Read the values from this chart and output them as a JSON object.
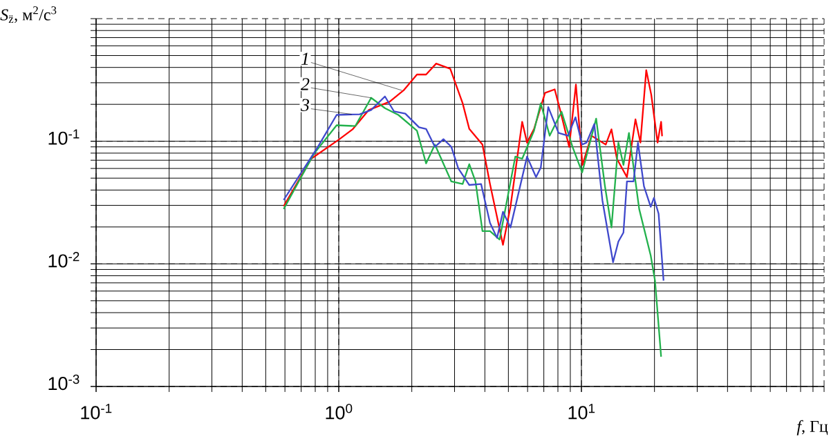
{
  "chart_data": {
    "type": "line",
    "xlabel": "*f*, Гц",
    "ylabel": "*S*$_{z̈}$, м$^{2}$/с$^{3}$",
    "log": "xy",
    "grid": true,
    "marker": "none",
    "line_style": "solid",
    "xlim": [
      0.1,
      100
    ],
    "ylim": [
      0.001,
      1
    ],
    "xticks": [
      {
        "value": 0.1,
        "label": "10$^{-1}$"
      },
      {
        "value": 1,
        "label": "10$^{0}$"
      },
      {
        "value": 10,
        "label": "10$^{1}$"
      },
      {
        "value": 100,
        "label": null
      }
    ],
    "yticks": [
      {
        "value": 0.001,
        "label": "10$^{-3}$"
      },
      {
        "value": 0.01,
        "label": "10$^{-2}$"
      },
      {
        "value": 0.1,
        "label": "10$^{-1}$"
      },
      {
        "value": 1,
        "label": null
      }
    ],
    "annotations": [
      {
        "text": "1",
        "x": 1.82,
        "y": 0.26
      },
      {
        "text": "2",
        "x": 1.36,
        "y": 0.226
      },
      {
        "text": "3",
        "x": 1.13,
        "y": 0.166
      }
    ],
    "series": [
      {
        "color": "#ff0000",
        "x": [
          0.593,
          0.77,
          1.0,
          1.14,
          1.33,
          1.62,
          1.85,
          2.1,
          2.29,
          2.52,
          2.88,
          3.24,
          3.45,
          3.91,
          4.2,
          4.75,
          5.1,
          5.7,
          5.97,
          6.38,
          7.08,
          7.76,
          8.17,
          8.9,
          9.49,
          10.1,
          11.0,
          12.6,
          13.3,
          14.0,
          15.4,
          16.7,
          17.5,
          18.5,
          19.4,
          20.6,
          21.3,
          21.5
        ],
        "values": [
          0.0295,
          0.072,
          0.103,
          0.125,
          0.18,
          0.21,
          0.26,
          0.35,
          0.35,
          0.43,
          0.39,
          0.204,
          0.126,
          0.094,
          0.0448,
          0.0143,
          0.0292,
          0.144,
          0.0975,
          0.126,
          0.248,
          0.265,
          0.18,
          0.09,
          0.29,
          0.064,
          0.111,
          0.094,
          0.125,
          0.072,
          0.051,
          0.151,
          0.0975,
          0.38,
          0.24,
          0.0975,
          0.144,
          0.11
        ]
      },
      {
        "color": "#22b14c",
        "x": [
          0.593,
          0.79,
          0.98,
          1.17,
          1.36,
          1.55,
          1.76,
          2.1,
          2.29,
          2.49,
          2.91,
          3.24,
          3.45,
          3.66,
          3.91,
          4.2,
          4.6,
          5.34,
          5.7,
          6.38,
          6.8,
          7.4,
          8.28,
          9.19,
          10.07,
          11.5,
          12.5,
          13.3,
          14.2,
          14.9,
          15.7,
          17.3,
          19.3,
          20.1,
          21.3
        ],
        "values": [
          0.028,
          0.079,
          0.135,
          0.133,
          0.226,
          0.186,
          0.164,
          0.122,
          0.066,
          0.094,
          0.047,
          0.0448,
          0.065,
          0.047,
          0.0185,
          0.0185,
          0.0158,
          0.075,
          0.072,
          0.122,
          0.204,
          0.111,
          0.174,
          0.09,
          0.0557,
          0.153,
          0.043,
          0.0198,
          0.0975,
          0.064,
          0.117,
          0.028,
          0.0117,
          0.0073,
          0.00175
        ]
      },
      {
        "color": "#3f48cc",
        "x": [
          0.593,
          0.82,
          0.98,
          1.22,
          1.36,
          1.55,
          1.69,
          1.88,
          2.14,
          2.29,
          2.49,
          2.7,
          2.91,
          3.11,
          3.45,
          3.86,
          4.2,
          4.49,
          4.75,
          5.1,
          5.97,
          6.5,
          6.8,
          7.3,
          8.05,
          8.8,
          9.45,
          10.07,
          10.5,
          11.3,
          12.2,
          13.5,
          14.2,
          14.9,
          15.4,
          16.4,
          17.1,
          18.1,
          19.3,
          19.9,
          20.8,
          21.8
        ],
        "values": [
          0.0332,
          0.09,
          0.164,
          0.166,
          0.18,
          0.232,
          0.175,
          0.168,
          0.13,
          0.126,
          0.09,
          0.104,
          0.09,
          0.06,
          0.044,
          0.0448,
          0.0216,
          0.0163,
          0.0266,
          0.0198,
          0.075,
          0.051,
          0.061,
          0.19,
          0.117,
          0.111,
          0.157,
          0.094,
          0.0975,
          0.138,
          0.033,
          0.0103,
          0.0152,
          0.018,
          0.047,
          0.047,
          0.0975,
          0.043,
          0.0292,
          0.0345,
          0.0256,
          0.0073
        ]
      }
    ]
  }
}
